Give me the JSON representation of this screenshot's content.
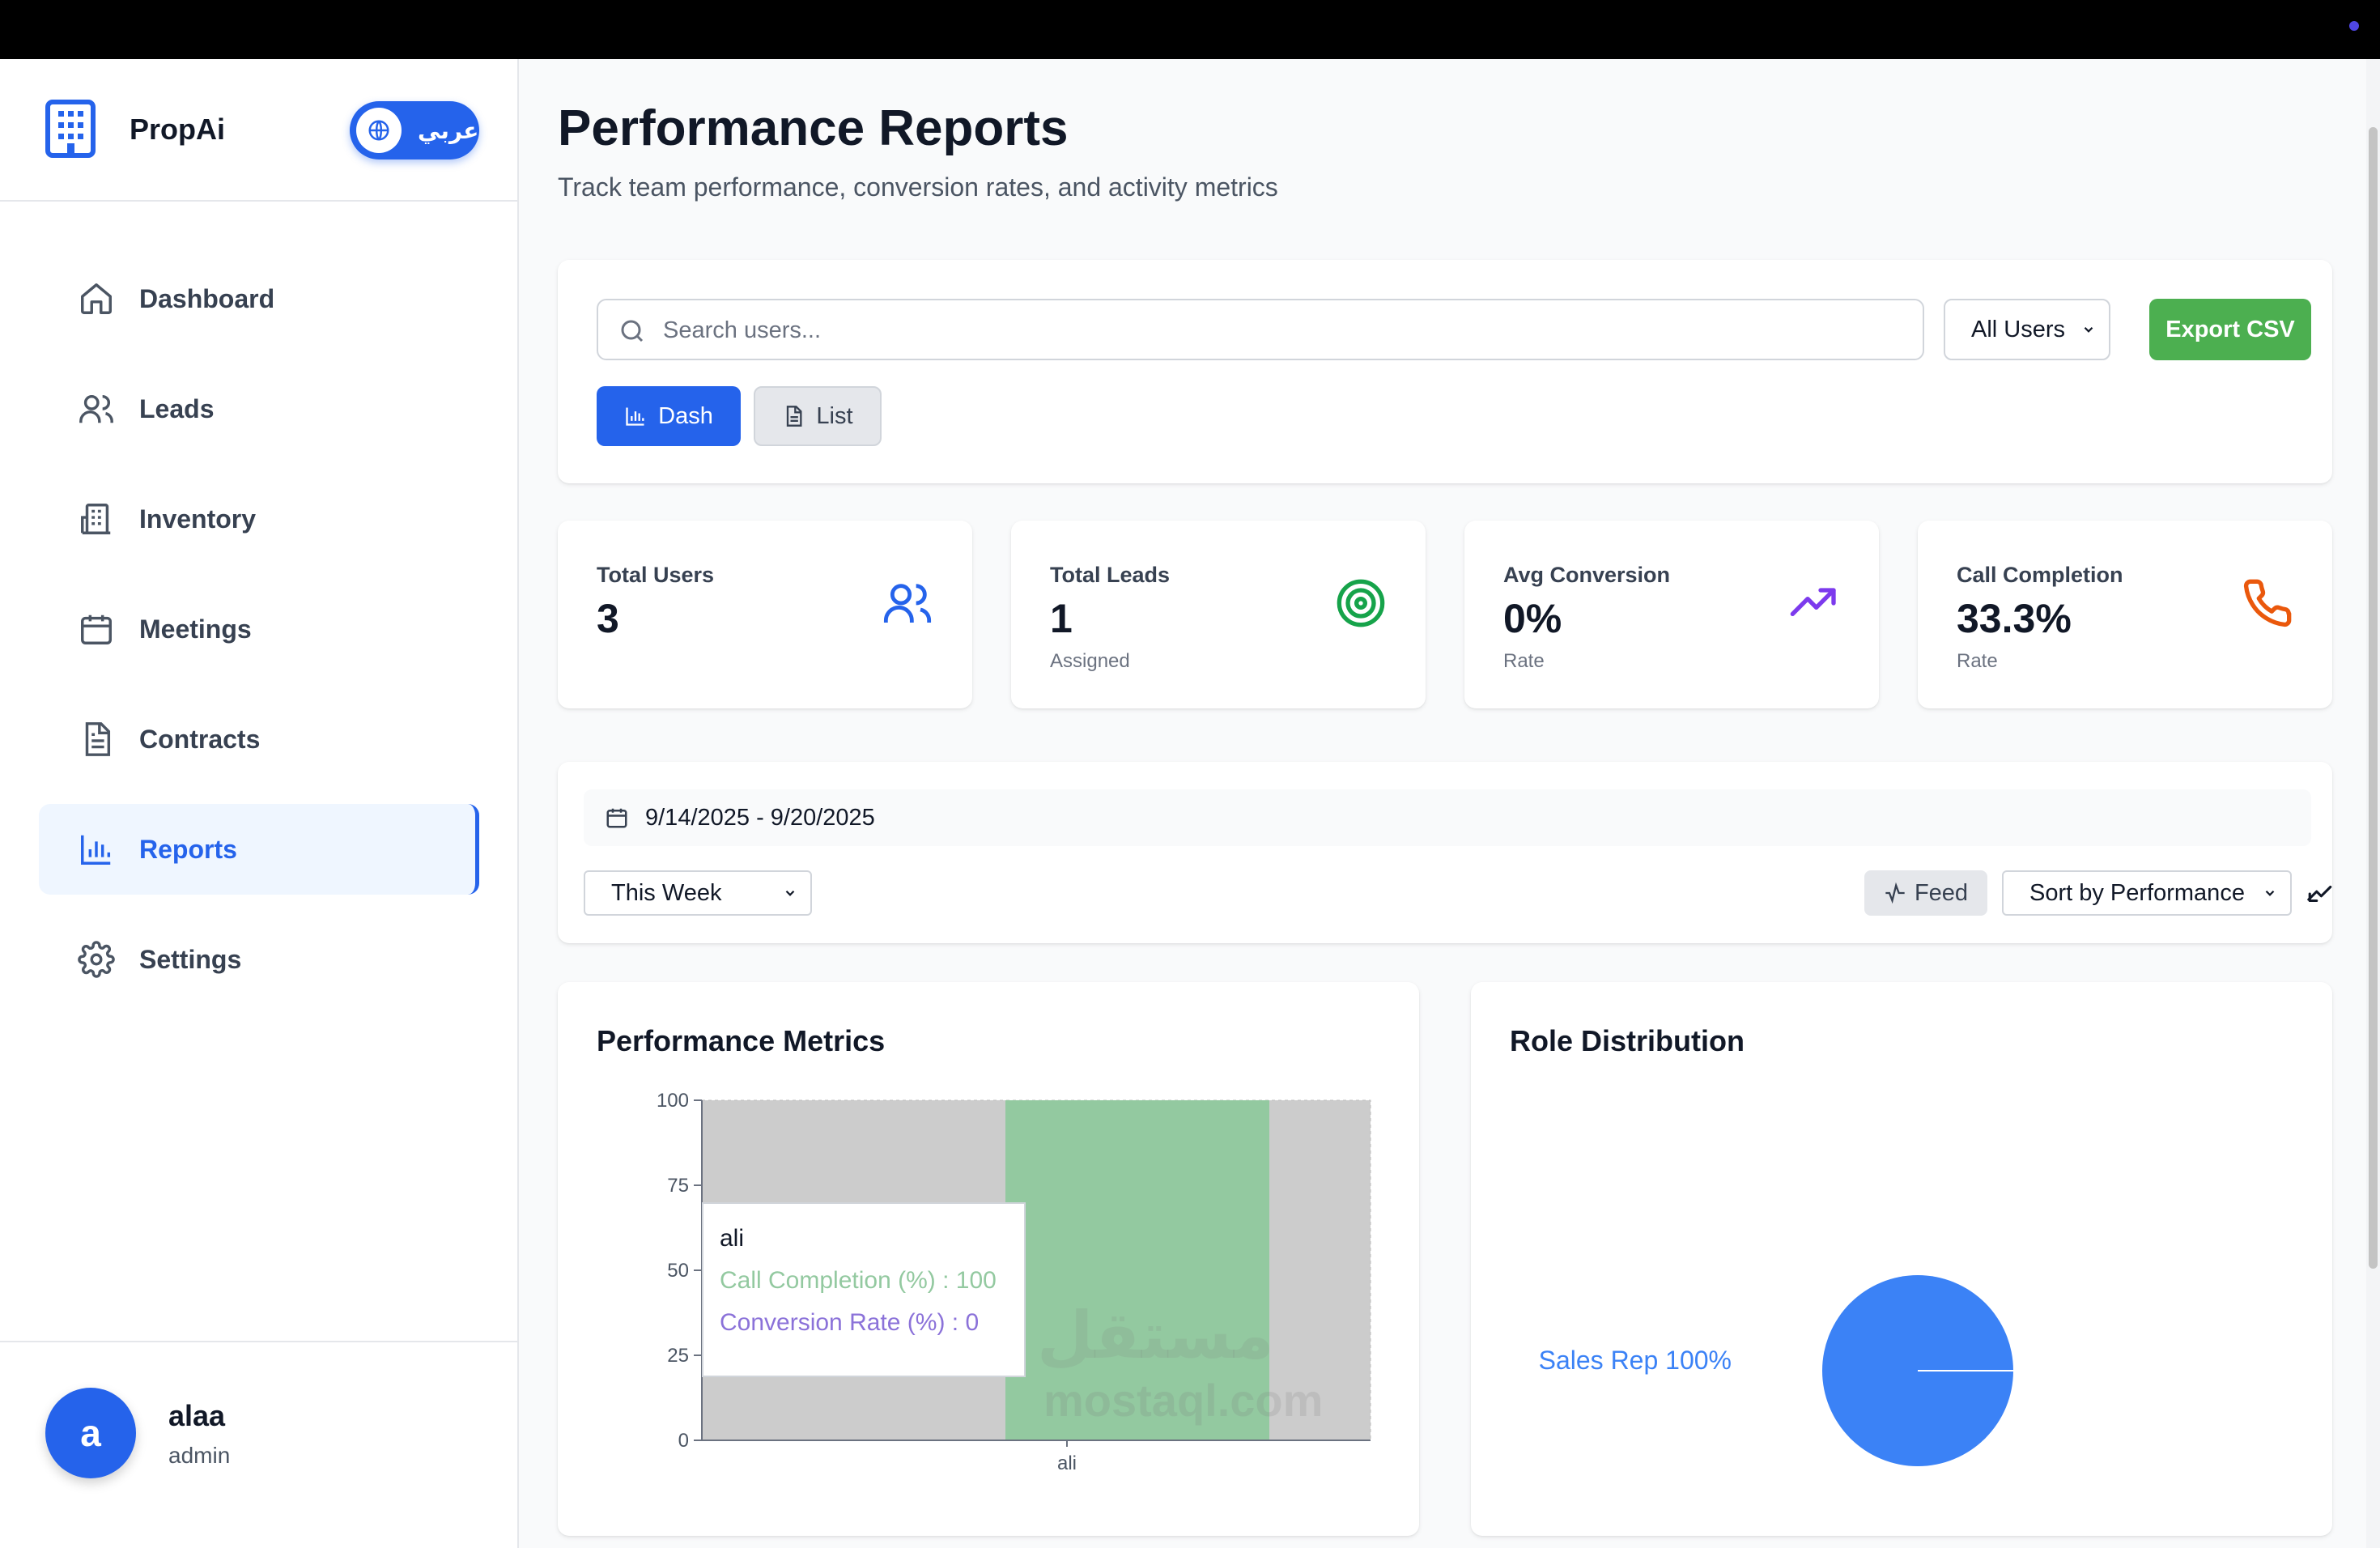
{
  "app": {
    "name": "PropAi",
    "language_toggle": "عربي"
  },
  "sidebar": {
    "items": [
      {
        "label": "Dashboard",
        "icon": "home-icon",
        "active": false
      },
      {
        "label": "Leads",
        "icon": "users-icon",
        "active": false
      },
      {
        "label": "Inventory",
        "icon": "building-icon",
        "active": false
      },
      {
        "label": "Meetings",
        "icon": "calendar-icon",
        "active": false
      },
      {
        "label": "Contracts",
        "icon": "document-icon",
        "active": false
      },
      {
        "label": "Reports",
        "icon": "bar-chart-icon",
        "active": true
      },
      {
        "label": "Settings",
        "icon": "gear-icon",
        "active": false
      }
    ],
    "user": {
      "initial": "a",
      "name": "alaa",
      "role": "admin"
    }
  },
  "page": {
    "title": "Performance Reports",
    "subtitle": "Track team performance, conversion rates, and activity metrics"
  },
  "toolbar": {
    "search_placeholder": "Search users...",
    "user_filter": "All Users",
    "export_label": "Export CSV",
    "view_dash": "Dash",
    "view_list": "List"
  },
  "stats": [
    {
      "label": "Total Users",
      "value": "3",
      "sub": "",
      "icon": "users-icon",
      "color": "#2563eb"
    },
    {
      "label": "Total Leads",
      "value": "1",
      "sub": "Assigned",
      "icon": "target-icon",
      "color": "#16a34a"
    },
    {
      "label": "Avg Conversion",
      "value": "0%",
      "sub": "Rate",
      "icon": "trending-up-icon",
      "color": "#7c3aed"
    },
    {
      "label": "Call Completion",
      "value": "33.3%",
      "sub": "Rate",
      "icon": "phone-icon",
      "color": "#ea580c"
    }
  ],
  "filters": {
    "date_range": "9/14/2025 - 9/20/2025",
    "period": "This Week",
    "feed_label": "Feed",
    "sort": "Sort by Performance"
  },
  "charts": {
    "performance_title": "Performance Metrics",
    "role_title": "Role Distribution",
    "tooltip": {
      "name": "ali",
      "line1": "Call Completion (%) : 100",
      "line2": "Conversion Rate (%) : 0"
    }
  },
  "chart_data": [
    {
      "type": "bar",
      "title": "Performance Metrics",
      "categories": [
        "ali"
      ],
      "series": [
        {
          "name": "Call Completion (%)",
          "values": [
            100
          ],
          "color": "#93c9a0"
        },
        {
          "name": "Conversion Rate (%)",
          "values": [
            0
          ],
          "color": "#8b72d9"
        }
      ],
      "yticks": [
        0,
        25,
        50,
        75,
        100
      ],
      "ylim": [
        0,
        100
      ]
    },
    {
      "type": "pie",
      "title": "Role Distribution",
      "slices": [
        {
          "label": "Sales Rep",
          "value": 100,
          "color": "#3b82f6"
        }
      ],
      "label_text": "Sales Rep 100%"
    }
  ],
  "watermark": {
    "arabic": "مستقل",
    "latin": "mostaql.com"
  },
  "colors": {
    "primary": "#2563eb",
    "success": "#4caf50",
    "accent_purple": "#7c3aed",
    "accent_orange": "#ea580c"
  }
}
